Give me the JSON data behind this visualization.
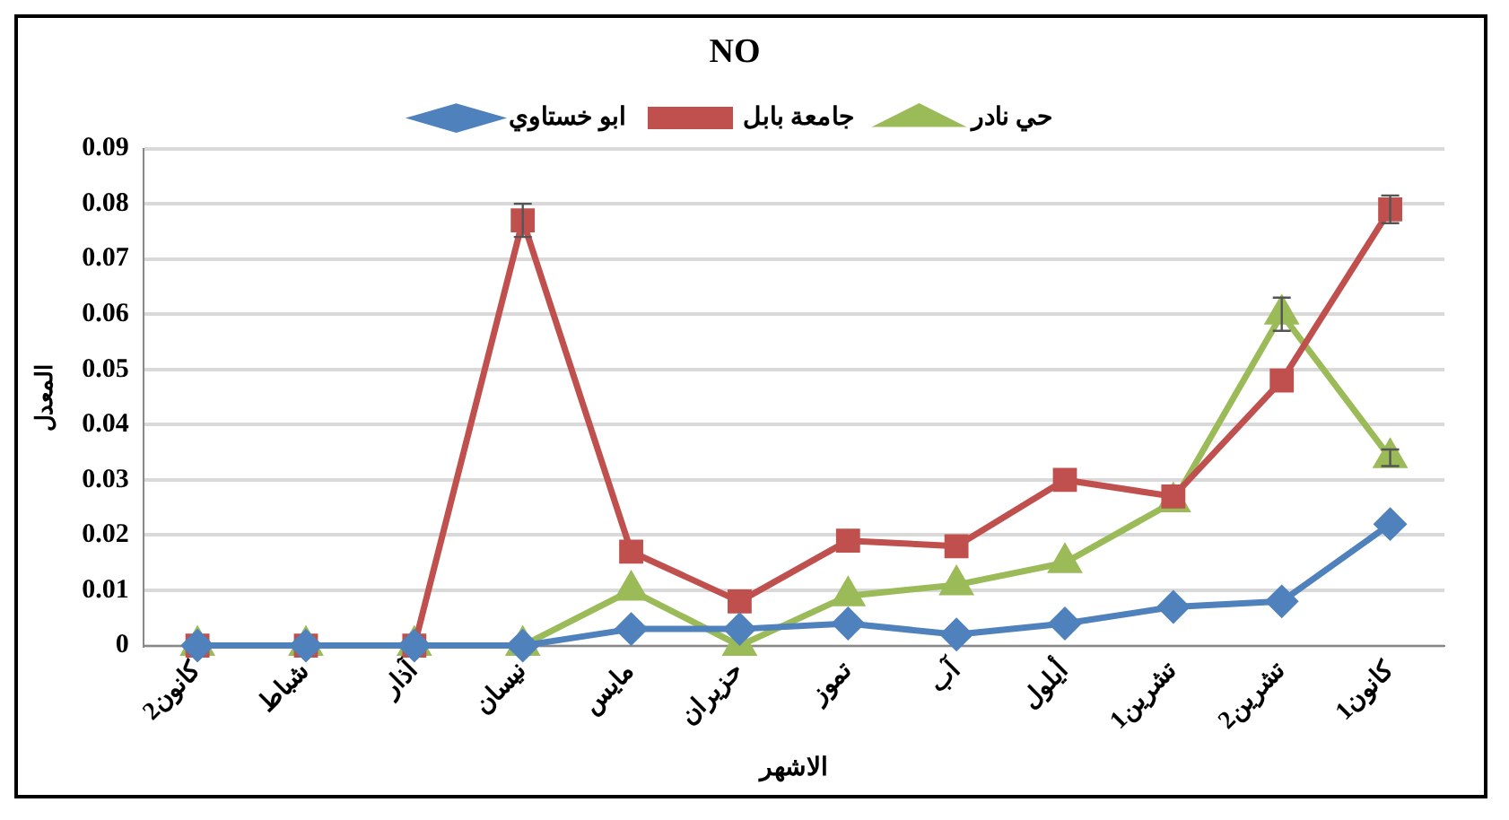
{
  "chart_data": {
    "type": "line",
    "title": "NO",
    "xlabel": "الاشهر",
    "ylabel": "المعدل",
    "categories": [
      "كانون2",
      "شباط",
      "آذار",
      "نيسان",
      "مايس",
      "حزيران",
      "تموز",
      "آب",
      "أيلول",
      "تشرين1",
      "تشرين2",
      "كانون1"
    ],
    "series": [
      {
        "name": "ابو خستاوي",
        "color": "#4f81bd",
        "marker": "diamond",
        "values": [
          0,
          0,
          0,
          0,
          0.003,
          0.003,
          0.004,
          0.002,
          0.004,
          0.007,
          0.008,
          0.022
        ]
      },
      {
        "name": "جامعة بابل",
        "color": "#c0504d",
        "marker": "square",
        "values": [
          0,
          0,
          0,
          0.077,
          0.017,
          0.008,
          0.019,
          0.018,
          0.03,
          0.027,
          0.048,
          0.079
        ],
        "errors": [
          null,
          null,
          null,
          0.003,
          null,
          null,
          null,
          null,
          null,
          null,
          null,
          0.0025
        ]
      },
      {
        "name": "حي نادر",
        "color": "#9bbb59",
        "marker": "triangle",
        "values": [
          0,
          0,
          0,
          0,
          0.01,
          0,
          0.009,
          0.011,
          0.015,
          0.026,
          0.06,
          0.034
        ],
        "errors": [
          null,
          null,
          null,
          null,
          null,
          null,
          null,
          null,
          null,
          null,
          0.003,
          0.0015
        ]
      }
    ],
    "ylim": [
      0,
      0.09
    ],
    "yticks": [
      0,
      0.01,
      0.02,
      0.03,
      0.04,
      0.05,
      0.06,
      0.07,
      0.08,
      0.09
    ],
    "grid": "y",
    "legend": "top"
  }
}
